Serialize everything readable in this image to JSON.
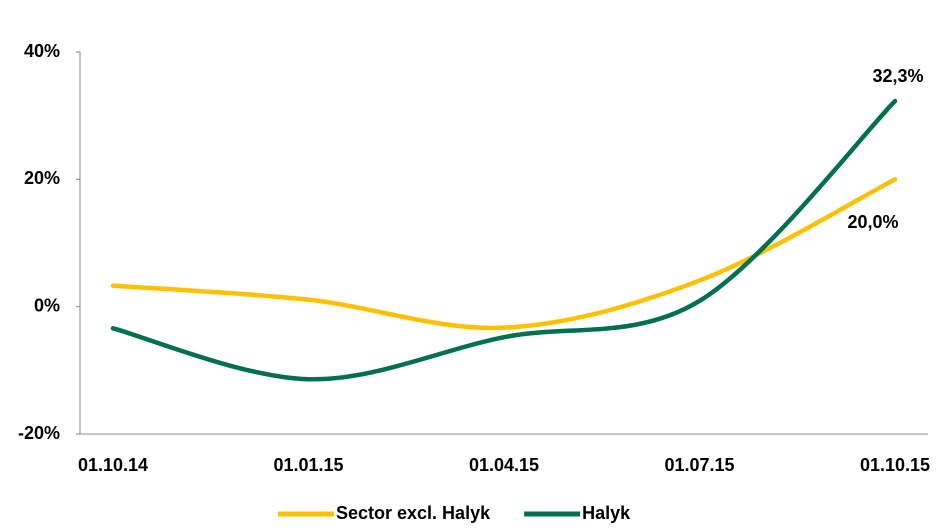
{
  "chart_data": {
    "type": "line",
    "categories": [
      "01.10.14",
      "01.01.15",
      "01.04.15",
      "01.07.15",
      "01.10.15"
    ],
    "series": [
      {
        "name": "Sector excl. Halyk",
        "color": "#ffc000",
        "values": [
          3.3,
          1.1,
          -3.3,
          4.1,
          20.0
        ],
        "value_labels": [
          null,
          null,
          null,
          null,
          "20,0%"
        ]
      },
      {
        "name": "Halyk",
        "color": "#00704f",
        "values": [
          -3.4,
          -11.4,
          -4.8,
          0.9,
          32.3
        ],
        "value_labels": [
          null,
          null,
          null,
          null,
          "32,3%"
        ]
      }
    ],
    "ylim": [
      -20,
      40
    ],
    "yticks": [
      {
        "value": -20,
        "label": "-20%"
      },
      {
        "value": 0,
        "label": "0%"
      },
      {
        "value": 20,
        "label": "20%"
      },
      {
        "value": 40,
        "label": "40%"
      }
    ],
    "grid": false,
    "legend": "bottom",
    "smooth": true
  }
}
